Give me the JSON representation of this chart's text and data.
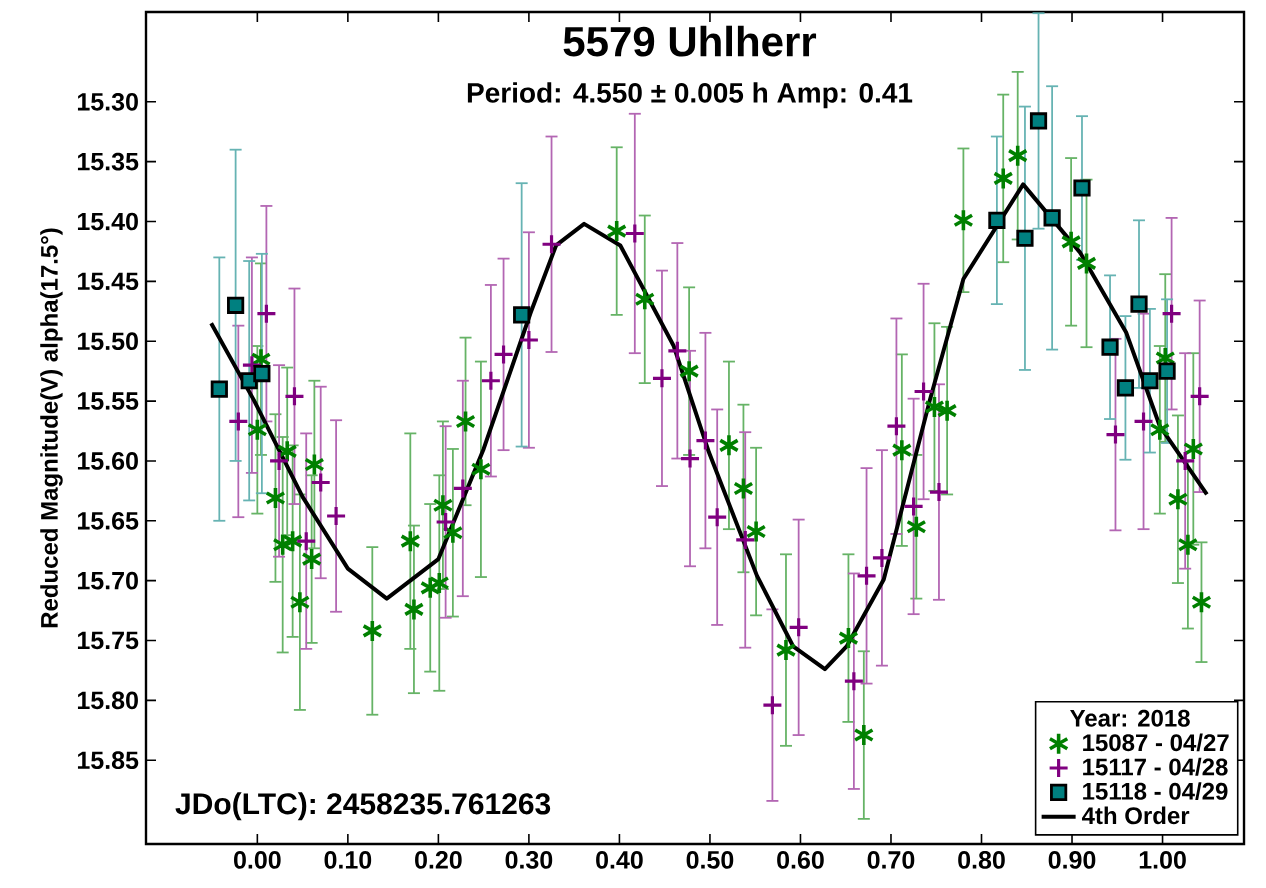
{
  "chart_data": {
    "type": "scatter",
    "title": "5579 Uhlherr",
    "subtitle": "Period: 4.550 ± 0.005 h    Amp: 0.41",
    "ylabel": "Reduced Magnitude(V) alpha(17.5°)",
    "legend_title": "Year: 2018",
    "annotations": [
      "JDo(LTC): 2458235.761263"
    ],
    "xlim": [
      -0.123,
      1.09
    ],
    "ylim": [
      15.92,
      15.225
    ],
    "xticks": [
      {
        "value": 0,
        "label": "0.00"
      },
      {
        "value": 0.1,
        "label": "0.10"
      },
      {
        "value": 0.2,
        "label": "0.20"
      },
      {
        "value": 0.3,
        "label": "0.30"
      },
      {
        "value": 0.4,
        "label": "0.40"
      },
      {
        "value": 0.5,
        "label": "0.50"
      },
      {
        "value": 0.6,
        "label": "0.60"
      },
      {
        "value": 0.7,
        "label": "0.70"
      },
      {
        "value": 0.8,
        "label": "0.80"
      },
      {
        "value": 0.9,
        "label": "0.90"
      },
      {
        "value": 1.0,
        "label": "1.00"
      }
    ],
    "yticks": [
      {
        "value": 15.3,
        "label": "15.30"
      },
      {
        "value": 15.35,
        "label": "15.35"
      },
      {
        "value": 15.4,
        "label": "15.40"
      },
      {
        "value": 15.45,
        "label": "15.45"
      },
      {
        "value": 15.5,
        "label": "15.50"
      },
      {
        "value": 15.55,
        "label": "15.55"
      },
      {
        "value": 15.6,
        "label": "15.60"
      },
      {
        "value": 15.65,
        "label": "15.65"
      },
      {
        "value": 15.7,
        "label": "15.70"
      },
      {
        "value": 15.75,
        "label": "15.75"
      },
      {
        "value": 15.8,
        "label": "15.80"
      },
      {
        "value": 15.85,
        "label": "15.85"
      }
    ],
    "legend": "bottom right",
    "series": [
      {
        "name": "15087 - 04/27",
        "color": "#008000",
        "x": [
          0.004,
          0.0,
          0.033,
          0.23,
          0.063,
          0.02,
          0.028,
          0.039,
          0.06,
          0.047,
          0.127,
          0.169,
          0.173,
          0.191,
          0.201,
          0.216,
          0.205,
          0.247,
          0.397,
          0.428,
          0.477,
          0.521,
          0.537,
          0.551,
          0.584,
          0.653,
          0.67,
          0.712,
          0.728,
          0.78,
          0.824,
          0.84,
          0.899,
          0.916,
          1.003,
          0.748,
          0.762,
          1.034,
          0.997,
          1.017,
          1.028,
          1.043
        ],
        "values": [
          15.515,
          15.574,
          15.592,
          15.567,
          15.603,
          15.631,
          15.67,
          15.667,
          15.682,
          15.718,
          15.742,
          15.667,
          15.724,
          15.706,
          15.702,
          15.66,
          15.637,
          15.607,
          15.408,
          15.465,
          15.525,
          15.587,
          15.623,
          15.659,
          15.758,
          15.748,
          15.829,
          15.591,
          15.655,
          15.399,
          15.364,
          15.345,
          15.417,
          15.435,
          15.514,
          15.555,
          15.558,
          15.59,
          15.574,
          15.632,
          15.67,
          15.718
        ],
        "errors": [
          0.08,
          0.07,
          0.07,
          0.07,
          0.07,
          0.07,
          0.09,
          0.08,
          0.07,
          0.09,
          0.07,
          0.09,
          0.07,
          0.07,
          0.09,
          0.07,
          0.07,
          0.09,
          0.07,
          0.07,
          0.07,
          0.07,
          0.07,
          0.07,
          0.08,
          0.07,
          0.07,
          0.08,
          0.06,
          0.06,
          0.07,
          0.07,
          0.07,
          0.07,
          0.07,
          0.07,
          0.07,
          0.08,
          0.07,
          0.07,
          0.07,
          0.05
        ]
      },
      {
        "name": "15117 - 04/28",
        "color": "#800080",
        "marker": "cross",
        "x": [
          0.01,
          -0.021,
          -0.006,
          0.041,
          0.258,
          0.272,
          0.3,
          0.325,
          0.024,
          0.07,
          0.087,
          0.054,
          0.208,
          0.227,
          0.417,
          0.464,
          0.447,
          0.495,
          0.478,
          0.508,
          0.539,
          0.569,
          0.598,
          0.659,
          0.673,
          0.69,
          0.706,
          0.725,
          0.736,
          1.01,
          1.041,
          0.948,
          0.979,
          0.753,
          1.025
        ],
        "values": [
          15.477,
          15.567,
          15.52,
          15.546,
          15.533,
          15.511,
          15.499,
          15.419,
          15.6,
          15.618,
          15.646,
          15.667,
          15.651,
          15.623,
          15.41,
          15.508,
          15.531,
          15.583,
          15.598,
          15.647,
          15.666,
          15.804,
          15.739,
          15.784,
          15.696,
          15.681,
          15.571,
          15.638,
          15.542,
          15.477,
          15.546,
          15.578,
          15.567,
          15.626,
          15.6
        ],
        "errors": [
          0.09,
          0.08,
          0.09,
          0.09,
          0.08,
          0.08,
          0.09,
          0.09,
          0.08,
          0.08,
          0.08,
          0.09,
          0.08,
          0.09,
          0.1,
          0.09,
          0.09,
          0.09,
          0.09,
          0.09,
          0.09,
          0.08,
          0.09,
          0.09,
          0.09,
          0.09,
          0.09,
          0.09,
          0.09,
          0.08,
          0.08,
          0.08,
          0.09,
          0.09,
          0.09
        ]
      },
      {
        "name": "15118 - 04/29",
        "color": "#008080",
        "marker": "square",
        "x": [
          -0.042,
          -0.024,
          -0.009,
          0.005,
          0.292,
          0.863,
          0.817,
          0.848,
          0.878,
          0.911,
          0.942,
          0.974,
          0.959,
          0.986,
          1.005
        ],
        "values": [
          15.54,
          15.47,
          15.533,
          15.527,
          15.478,
          15.316,
          15.399,
          15.414,
          15.397,
          15.372,
          15.505,
          15.469,
          15.539,
          15.533,
          15.525
        ],
        "errors": [
          0.11,
          0.13,
          0.1,
          0.1,
          0.11,
          0.09,
          0.07,
          0.11,
          0.11,
          0.06,
          0.06,
          0.07,
          0.06,
          0.06,
          0.06
        ]
      },
      {
        "name": "4th Order",
        "color": "#000000",
        "type": "line",
        "marker": "none",
        "x": [
          -0.051,
          -0.004,
          0.05,
          0.1,
          0.143,
          0.2,
          0.25,
          0.302,
          0.33,
          0.361,
          0.401,
          0.46,
          0.499,
          0.552,
          0.592,
          0.627,
          0.651,
          0.692,
          0.743,
          0.78,
          0.846,
          0.909,
          0.96,
          0.997,
          1.049
        ],
        "values": [
          15.485,
          15.549,
          15.63,
          15.69,
          15.715,
          15.682,
          15.59,
          15.476,
          15.42,
          15.402,
          15.42,
          15.504,
          15.593,
          15.696,
          15.755,
          15.774,
          15.755,
          15.699,
          15.549,
          15.448,
          15.369,
          15.426,
          15.493,
          15.571,
          15.628
        ]
      }
    ]
  }
}
